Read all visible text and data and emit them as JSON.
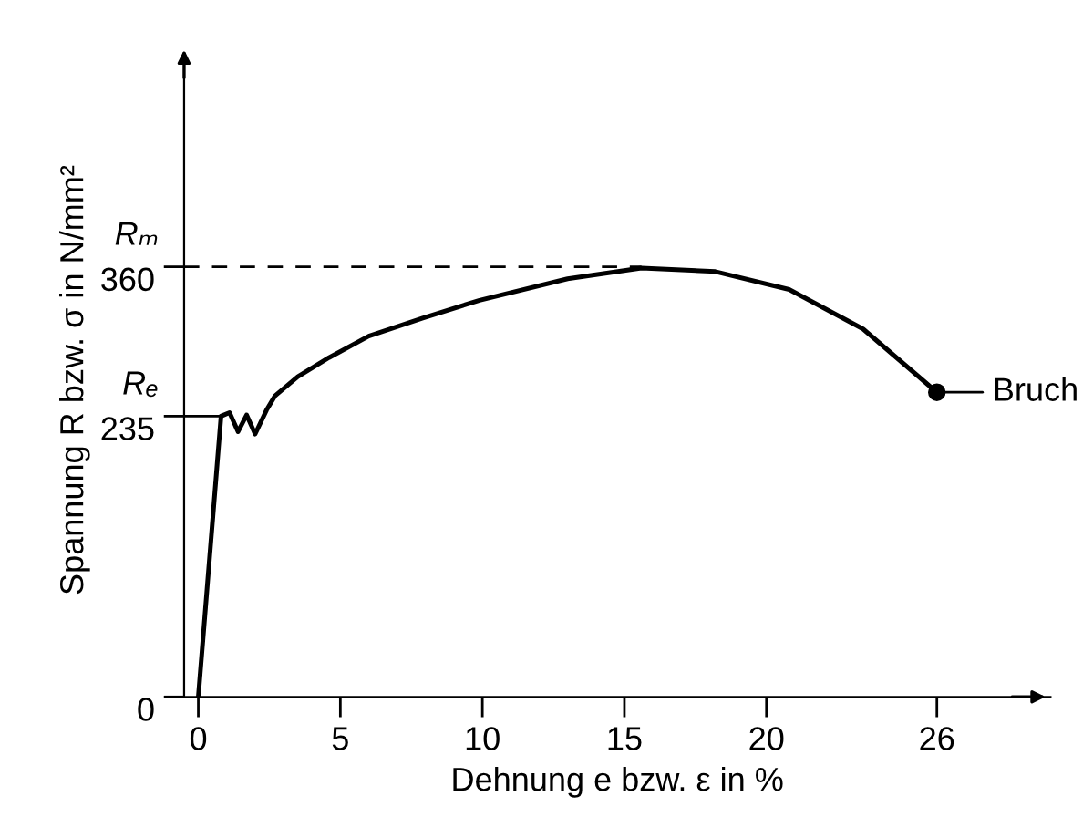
{
  "chart_data": {
    "type": "line",
    "xlabel": "Dehnung e bzw. ε in %",
    "ylabel": "Spannung R bzw. σ in N/mm²",
    "series": [
      {
        "color": "#000000",
        "x": [
          0,
          0.8,
          1.1,
          1.4,
          1.7,
          2.0,
          2.4,
          2.7,
          3.5,
          4.6,
          6,
          7.9,
          9.9,
          13,
          15.6,
          18.2,
          20.8,
          23.4,
          26
        ],
        "values": [
          0,
          235,
          238,
          222,
          236,
          220,
          240,
          252,
          268,
          284,
          302,
          317,
          332,
          350,
          359,
          356,
          341,
          308,
          255
        ]
      }
    ],
    "xlim": [
      -0.5,
      30
    ],
    "ylim": [
      0,
      530
    ],
    "xticks": [
      0,
      5,
      10,
      15,
      20,
      26
    ],
    "yticks": [
      0,
      235,
      360
    ],
    "ref_lines": [
      {
        "axis": "y",
        "value": 360,
        "label": "Rₘ",
        "line_style": "dashed",
        "color": "#000000"
      },
      {
        "axis": "y",
        "value": 235,
        "label": "Rₑ",
        "line_style": "solid",
        "color": "#000000"
      }
    ],
    "annotations": [
      {
        "text": "Bruch",
        "x": 26,
        "y": 255
      }
    ],
    "grid": false,
    "legend": false,
    "marker": "none",
    "line_style": "solid"
  }
}
